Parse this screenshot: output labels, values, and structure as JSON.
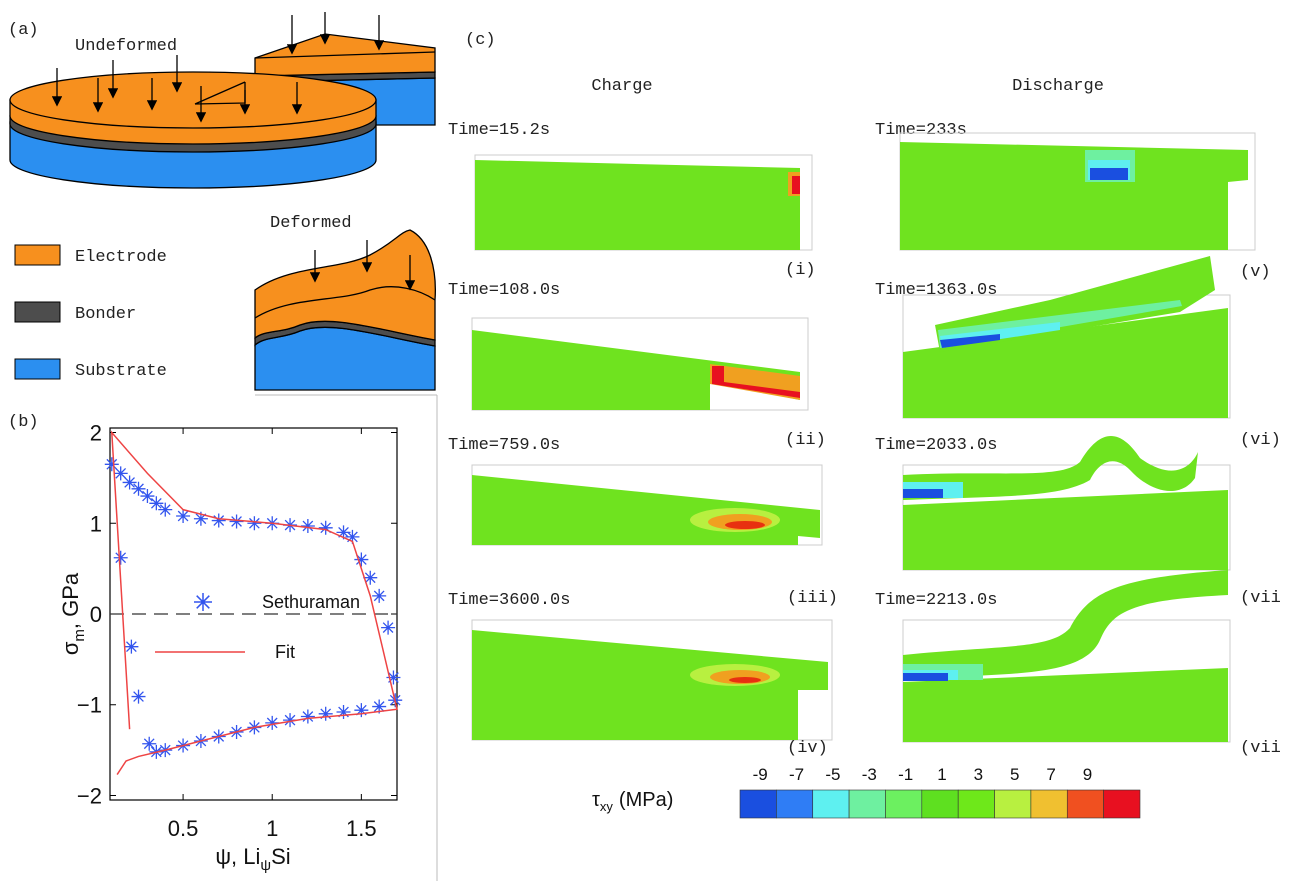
{
  "panel_a": {
    "label": "(a)",
    "undeformed": "Undeformed",
    "deformed": "Deformed",
    "legend": [
      {
        "name": "Electrode",
        "color": "#f7901e"
      },
      {
        "name": "Bonder",
        "color": "#4d4d4d"
      },
      {
        "name": "Substrate",
        "color": "#2b8ff0"
      }
    ]
  },
  "panel_b": {
    "label": "(b)"
  },
  "chart_data": {
    "type": "line",
    "x_label": {
      "text": "ψ, Li",
      "subscript": "ψ",
      "suffix": "Si"
    },
    "y_label": {
      "text": "σ",
      "subscript": "m",
      "suffix": ", GPa"
    },
    "xlim": [
      0.09,
      1.7
    ],
    "ylim": [
      -2.05,
      2.05
    ],
    "xticks": [
      0.5,
      1,
      1.5
    ],
    "yticks": [
      {
        "value": -2,
        "label": "−2"
      },
      {
        "value": -1,
        "label": "−1"
      },
      0,
      1,
      2
    ],
    "reference_line": 0,
    "grid": false,
    "legend": "center",
    "series": [
      {
        "name": "Sethuraman",
        "color": "#3355ee",
        "marker": "star",
        "x": [
          0.1,
          0.15,
          0.2,
          0.25,
          0.3,
          0.35,
          0.4,
          0.5,
          0.6,
          0.7,
          0.8,
          0.9,
          1.0,
          1.1,
          1.2,
          1.3,
          1.4,
          1.45,
          1.5,
          1.55,
          1.6,
          1.65,
          1.68,
          1.69,
          1.6,
          1.5,
          1.4,
          1.3,
          1.2,
          1.1,
          1.0,
          0.9,
          0.8,
          0.7,
          0.6,
          0.5,
          0.4,
          0.35,
          0.31,
          0.25,
          0.21,
          0.15
        ],
        "values": [
          1.65,
          1.55,
          1.45,
          1.38,
          1.3,
          1.22,
          1.15,
          1.08,
          1.05,
          1.03,
          1.02,
          1.0,
          1.0,
          0.98,
          0.97,
          0.95,
          0.9,
          0.85,
          0.6,
          0.4,
          0.2,
          -0.15,
          -0.7,
          -0.95,
          -1.02,
          -1.06,
          -1.08,
          -1.1,
          -1.13,
          -1.17,
          -1.2,
          -1.25,
          -1.3,
          -1.35,
          -1.4,
          -1.45,
          -1.5,
          -1.52,
          -1.43,
          -0.91,
          -0.36,
          0.62
        ]
      },
      {
        "name": "Fit",
        "color": "#ee4444",
        "x": [
          0.2,
          0.1,
          0.3,
          0.5,
          0.7,
          1.0,
          1.3,
          1.45,
          1.55,
          1.7,
          1.5,
          1.2,
          0.9,
          0.6,
          0.4,
          0.25,
          0.18,
          0.13
        ],
        "values": [
          -1.27,
          2.0,
          1.55,
          1.15,
          1.05,
          1.0,
          0.93,
          0.8,
          0.2,
          -1.05,
          -1.1,
          -1.15,
          -1.25,
          -1.4,
          -1.5,
          -1.57,
          -1.62,
          -1.77
        ]
      }
    ]
  },
  "panel_c": {
    "label": "(c)",
    "columns": [
      "Charge",
      "Discharge"
    ],
    "snapshots": [
      {
        "time": "Time=15.2s",
        "tag": "(i)"
      },
      {
        "time": "Time=108.0s",
        "tag": "(ii)"
      },
      {
        "time": "Time=759.0s",
        "tag": "(iii)"
      },
      {
        "time": "Time=3600.0s",
        "tag": "(iv)"
      },
      {
        "time": "Time=233s",
        "tag": "(v)"
      },
      {
        "time": "Time=1363.0s",
        "tag": "(vi)"
      },
      {
        "time": "Time=2033.0s",
        "tag": "(vii"
      },
      {
        "time": "Time=2213.0s",
        "tag": "(vii"
      }
    ],
    "colorbar": {
      "symbol": "τ",
      "subscript": "xy",
      "unit": "(MPa)",
      "ticks": [
        -9,
        -7,
        -5,
        -3,
        -1,
        1,
        3,
        5,
        7,
        9
      ],
      "colors": [
        "#1a4fe0",
        "#2f7df5",
        "#5ef0f0",
        "#6ef0a0",
        "#6cf060",
        "#5ee020",
        "#6ee81a",
        "#b8f040",
        "#f0c030",
        "#f05020",
        "#e81020"
      ]
    }
  }
}
